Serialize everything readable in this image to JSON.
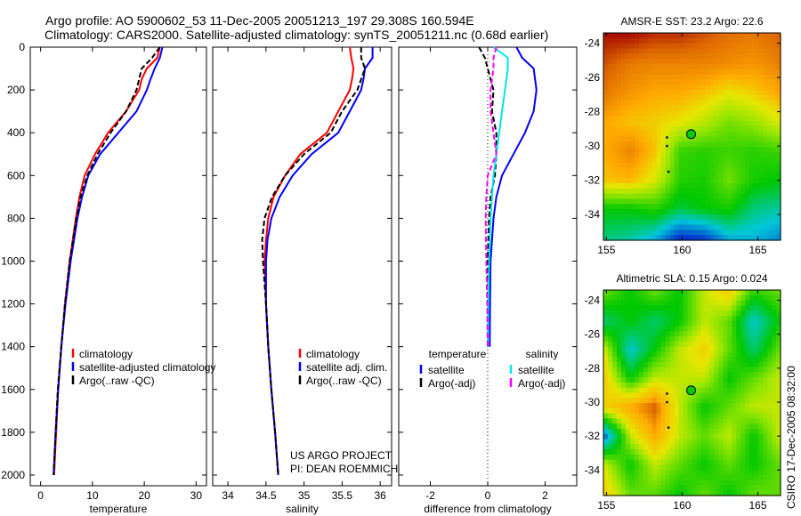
{
  "title": {
    "line1": "Argo profile: AO 5900602_53 11-Dec-2005 20051213_197 29.308S 160.594E",
    "line2": "Climatology: CARS2000. Satellite-adjusted climatology: synTS_20051211.nc (0.68d earlier)"
  },
  "side_label": "CSIRO 17-Dec-2005 08:32:00",
  "chart_data": [
    {
      "type": "line",
      "id": "temperature",
      "xlabel": "temperature",
      "ylabel": "",
      "xlim": [
        -2,
        32
      ],
      "ylim": [
        2050,
        0
      ],
      "xticks": [
        "0",
        "10",
        "20",
        "30"
      ],
      "yticks": [
        "0",
        "200",
        "400",
        "600",
        "800",
        "1000",
        "1200",
        "1400",
        "1600",
        "1800",
        "2000"
      ],
      "depth": [
        0,
        50,
        100,
        150,
        200,
        300,
        400,
        500,
        600,
        700,
        800,
        1000,
        1200,
        1400,
        1600,
        1800,
        2000
      ],
      "series": [
        {
          "name": "climatology",
          "color": "#ff0000",
          "dash": false,
          "values": [
            23,
            22.5,
            20.5,
            19.5,
            19,
            16.5,
            13,
            10.5,
            8.5,
            7.5,
            6.8,
            5.6,
            4.7,
            4,
            3.4,
            3,
            2.6
          ]
        },
        {
          "name": "satellite-adjusted climatology",
          "color": "#0000ff",
          "dash": false,
          "values": [
            23.5,
            23,
            22,
            21.2,
            20.5,
            18.5,
            15,
            11.5,
            9.2,
            8,
            7.1,
            5.8,
            4.8,
            4,
            3.4,
            2.9,
            2.5
          ]
        },
        {
          "name": "Argo(..raw -QC)",
          "color": "#000000",
          "dash": true,
          "values": [
            23,
            21.5,
            19.5,
            19,
            18.5,
            16.5,
            13.5,
            11,
            9,
            7.7,
            6.9,
            5.6,
            4.7,
            4,
            3.3,
            2.9,
            2.5
          ]
        }
      ]
    },
    {
      "type": "line",
      "id": "salinity",
      "xlabel": "salinity",
      "xlim": [
        33.8,
        36.15
      ],
      "ylim": [
        2050,
        0
      ],
      "xticks": [
        "34",
        "34.5",
        "35",
        "35.5",
        "36"
      ],
      "depth": [
        0,
        50,
        100,
        150,
        200,
        300,
        400,
        500,
        600,
        700,
        800,
        900,
        1000,
        1200,
        1400,
        1600,
        1800,
        2000
      ],
      "series": [
        {
          "name": "climatology",
          "color": "#ff0000",
          "dash": false,
          "values": [
            35.6,
            35.62,
            35.65,
            35.63,
            35.6,
            35.45,
            35.3,
            34.95,
            34.75,
            34.6,
            34.53,
            34.5,
            34.48,
            34.5,
            34.53,
            34.57,
            34.62,
            34.66
          ]
        },
        {
          "name": "satellite adj. clim.",
          "color": "#0000ff",
          "dash": false,
          "values": [
            35.9,
            35.9,
            35.8,
            35.78,
            35.75,
            35.6,
            35.45,
            35.1,
            34.85,
            34.68,
            34.57,
            34.52,
            34.5,
            34.5,
            34.53,
            34.57,
            34.62,
            34.66
          ]
        },
        {
          "name": "Argo(..raw -QC)",
          "color": "#000000",
          "dash": true,
          "values": [
            35.75,
            35.75,
            35.8,
            35.75,
            35.7,
            35.5,
            35.35,
            35,
            34.75,
            34.58,
            34.48,
            34.45,
            34.46,
            34.5,
            34.53,
            34.57,
            34.62,
            34.66
          ]
        }
      ],
      "annotation": [
        "US ARGO PROJECT",
        "PI: DEAN ROEMMICH"
      ]
    },
    {
      "type": "line",
      "id": "difference",
      "xlabel": "difference from climatology",
      "xlim": [
        -3.1,
        3.1
      ],
      "ylim": [
        2050,
        0
      ],
      "xticks": [
        "-2",
        "0",
        "2"
      ],
      "depth": [
        0,
        50,
        100,
        200,
        300,
        400,
        500,
        600,
        700,
        800,
        1000,
        1200,
        1400
      ],
      "legend_headers": [
        "temperature",
        "salinity"
      ],
      "series": [
        {
          "name": "satellite",
          "group": "temperature",
          "color": "#0000ff",
          "dash": false,
          "values": [
            1,
            1.2,
            1.6,
            1.7,
            1.6,
            1.3,
            0.9,
            0.5,
            0.3,
            0.2,
            0.1,
            0.08,
            0.07
          ]
        },
        {
          "name": "Argo(-adj)",
          "group": "temperature",
          "color": "#000000",
          "dash": true,
          "values": [
            -0.3,
            -0.1,
            0,
            0.2,
            0.15,
            0.3,
            0.3,
            0.25,
            0.1,
            0.05,
            0,
            0,
            0
          ]
        },
        {
          "name": "satellite",
          "group": "salinity",
          "color": "#00e5ee",
          "dash": false,
          "values": [
            0.2,
            0.7,
            0.7,
            0.6,
            0.5,
            0.4,
            0.3,
            0.2,
            0.15,
            0.1,
            0.05,
            0.02,
            0
          ]
        },
        {
          "name": "Argo(-adj)",
          "group": "salinity",
          "color": "#ff00ff",
          "dash": true,
          "values": [
            0.3,
            0.2,
            0.2,
            0.1,
            0.1,
            0.2,
            0.3,
            0,
            -0.05,
            -0.07,
            -0.05,
            -0.02,
            0
          ]
        }
      ]
    },
    {
      "type": "heatmap",
      "id": "sst_map",
      "title": "AMSR-E SST: 23.2 Argo: 22.6",
      "xlim": [
        154.8,
        166.5
      ],
      "ylim": [
        -35.5,
        -23.4
      ],
      "xticks": [
        "155",
        "160",
        "165"
      ],
      "yticks": [
        "-24",
        "-26",
        "-28",
        "-30",
        "-32",
        "-34"
      ],
      "float_position": [
        160.594,
        -29.308
      ],
      "track": [
        [
          159.0,
          -29.5
        ],
        [
          159.0,
          -30.0
        ],
        [
          159.1,
          -31.5
        ]
      ],
      "color_stops": [
        [
          19.5,
          "#0033cc"
        ],
        [
          20.3,
          "#00c8d8"
        ],
        [
          21,
          "#00c800"
        ],
        [
          21.8,
          "#99e600"
        ],
        [
          22.3,
          "#e6e600"
        ],
        [
          22.8,
          "#ffaa00"
        ],
        [
          23.5,
          "#dd6600"
        ],
        [
          24,
          "#aa1100"
        ]
      ],
      "grid": [
        [
          24,
          24,
          23.8,
          23.8,
          23.6,
          23.4,
          23.3,
          23.5
        ],
        [
          23.6,
          23.3,
          23.2,
          23.2,
          23.2,
          23.1,
          23,
          23.2
        ],
        [
          23.3,
          23,
          22.8,
          22.8,
          22.6,
          22.3,
          22.5,
          22.8
        ],
        [
          22.8,
          22.6,
          22.5,
          22.3,
          22,
          21.6,
          21.8,
          22.2
        ],
        [
          22.8,
          23.2,
          22.6,
          21.3,
          21.2,
          21.3,
          21.2,
          21.3
        ],
        [
          22.6,
          22.7,
          22.2,
          21.2,
          21.1,
          21.6,
          21.1,
          21
        ],
        [
          21,
          21,
          21.2,
          20.8,
          21,
          21.1,
          20.6,
          20.5
        ],
        [
          20.6,
          20.5,
          20.2,
          19.5,
          19.6,
          20.2,
          20.2,
          20
        ]
      ]
    },
    {
      "type": "heatmap",
      "id": "sla_map",
      "title": "Altimetric SLA: 0.15 Argo: 0.024",
      "xlim": [
        154.8,
        166.5
      ],
      "ylim": [
        -35.5,
        -23.4
      ],
      "xticks": [
        "155",
        "160",
        "165"
      ],
      "yticks": [
        "-24",
        "-26",
        "-28",
        "-30",
        "-32",
        "-34"
      ],
      "float_position": [
        160.594,
        -29.308
      ],
      "track": [
        [
          159.0,
          -29.5
        ],
        [
          159.0,
          -30.0
        ],
        [
          159.1,
          -31.5
        ]
      ],
      "color_stops": [
        [
          -0.2,
          "#002299"
        ],
        [
          -0.1,
          "#00c8d8"
        ],
        [
          0,
          "#00c800"
        ],
        [
          0.08,
          "#99e600"
        ],
        [
          0.12,
          "#e6e600"
        ],
        [
          0.2,
          "#ffaa00"
        ],
        [
          0.3,
          "#aa1100"
        ]
      ],
      "grid": [
        [
          0.05,
          0,
          0.05,
          0,
          0.1,
          0.15,
          0.02,
          0.05
        ],
        [
          -0.05,
          0,
          -0.05,
          0,
          0.1,
          0.05,
          -0.1,
          0
        ],
        [
          0.1,
          -0.1,
          0,
          0.1,
          0.15,
          0.05,
          -0.05,
          0.05
        ],
        [
          0.15,
          0,
          0.1,
          0.1,
          0.1,
          0,
          0.05,
          0.1
        ],
        [
          0.15,
          0.2,
          0.25,
          0.1,
          0,
          0.05,
          0.1,
          0.1
        ],
        [
          -0.15,
          0.1,
          0.2,
          0.1,
          0.05,
          0.1,
          0,
          0.1
        ],
        [
          0.1,
          0,
          0.1,
          0.05,
          0,
          0.05,
          0,
          0.05
        ],
        [
          0.15,
          0.05,
          0.05,
          0,
          0.05,
          0,
          0.05,
          0.05
        ]
      ]
    }
  ]
}
